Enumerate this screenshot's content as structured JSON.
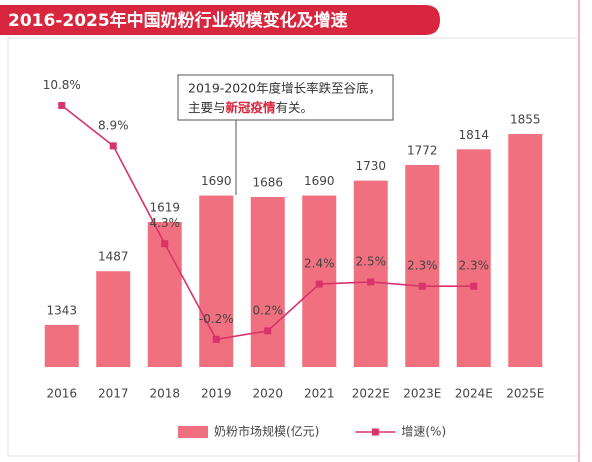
{
  "chart_data": {
    "type": "bar_line",
    "title": "2016-2025年中国奶粉行业规模变化及增速",
    "annotation": [
      "2019-2020年度增长率跌至谷底，",
      "主要与",
      "新冠疫情",
      "有关。"
    ],
    "categories": [
      "2016",
      "2017",
      "2018",
      "2019",
      "2020",
      "2021",
      "2022E",
      "2023E",
      "2024E",
      "2025E"
    ],
    "series": [
      {
        "name": "奶粉市场规模(亿元)",
        "type": "bar",
        "color": "#f0707f",
        "values": [
          1343,
          1487,
          1619,
          1690,
          1686,
          1690,
          1730,
          1772,
          1814,
          1855
        ]
      },
      {
        "name": "增速(%)",
        "type": "line",
        "axis": "y2",
        "color": "#d8336a",
        "values": [
          10.8,
          8.9,
          4.3,
          -0.2,
          0.2,
          2.4,
          2.5,
          2.3,
          2.3,
          null
        ],
        "value_labels": [
          "10.8%",
          "8.9%",
          "4.3%",
          "-0.2%",
          "0.2%",
          "2.4%",
          "2.5%",
          "2.3%",
          "2.3%",
          null
        ]
      }
    ],
    "ylim": [
      1230,
      2000
    ],
    "y2lim": [
      -1.5,
      12
    ],
    "grid": false
  }
}
